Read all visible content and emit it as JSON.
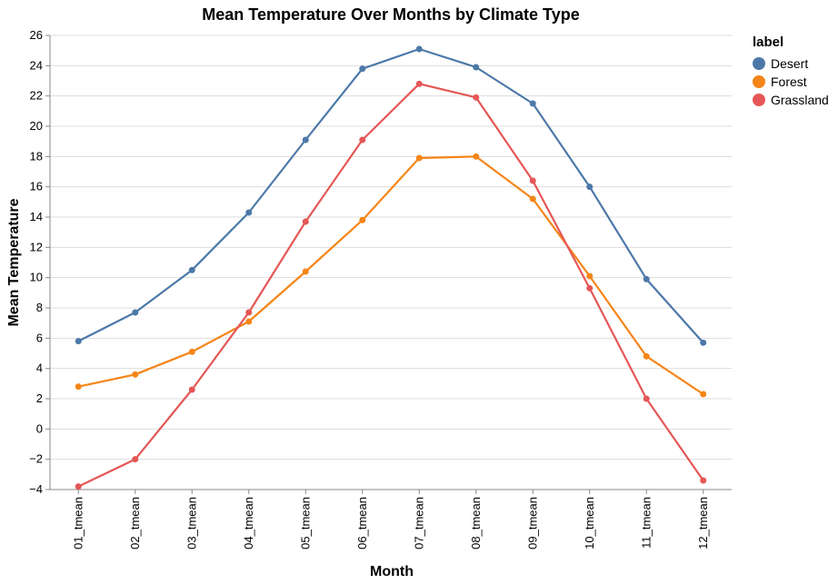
{
  "chart_data": {
    "type": "line",
    "title": "Mean Temperature Over Months by Climate Type",
    "xlabel": "Month",
    "ylabel": "Mean Temperature",
    "categories": [
      "01_tmean",
      "02_tmean",
      "03_tmean",
      "04_tmean",
      "05_tmean",
      "06_tmean",
      "07_tmean",
      "08_tmean",
      "09_tmean",
      "10_tmean",
      "11_tmean",
      "12_tmean"
    ],
    "ylim": [
      -4,
      26
    ],
    "yticks": [
      -4,
      -2,
      0,
      2,
      4,
      6,
      8,
      10,
      12,
      14,
      16,
      18,
      20,
      22,
      24,
      26
    ],
    "grid": true,
    "legend": {
      "title": "label",
      "placement": "top-right"
    },
    "series": [
      {
        "name": "Desert",
        "color": "#4c78a8",
        "values": [
          5.8,
          7.7,
          10.5,
          14.3,
          19.1,
          23.8,
          25.1,
          23.9,
          21.5,
          16.0,
          9.9,
          5.7
        ]
      },
      {
        "name": "Forest",
        "color": "#f58518",
        "values": [
          2.8,
          3.6,
          5.1,
          7.1,
          10.4,
          13.8,
          17.9,
          18.0,
          15.2,
          10.1,
          4.8,
          2.3
        ]
      },
      {
        "name": "Grassland",
        "color": "#e45756",
        "values": [
          -3.8,
          -2.0,
          2.6,
          7.7,
          13.7,
          19.1,
          22.8,
          21.9,
          16.4,
          9.3,
          2.0,
          -3.4
        ]
      }
    ]
  }
}
